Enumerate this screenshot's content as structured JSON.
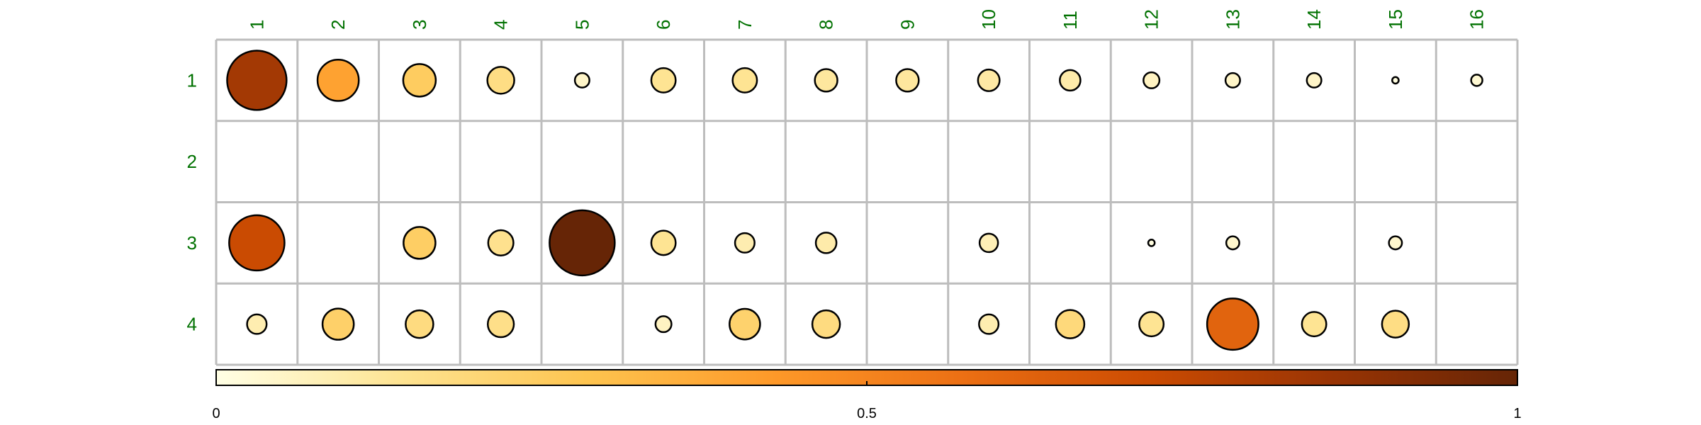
{
  "chart_data": {
    "type": "heatmap",
    "variant": "bubble-matrix",
    "columns": [
      "1",
      "2",
      "3",
      "4",
      "5",
      "6",
      "7",
      "8",
      "9",
      "10",
      "11",
      "12",
      "13",
      "14",
      "15",
      "16"
    ],
    "rows": [
      "1",
      "2",
      "3",
      "4"
    ],
    "values": [
      [
        0.83,
        0.4,
        0.25,
        0.17,
        0.05,
        0.14,
        0.14,
        0.12,
        0.12,
        0.11,
        0.1,
        0.06,
        0.05,
        0.05,
        0.01,
        0.03
      ],
      [
        null,
        null,
        null,
        null,
        null,
        null,
        null,
        null,
        null,
        null,
        null,
        null,
        null,
        null,
        null,
        null
      ],
      [
        0.72,
        null,
        0.24,
        0.15,
        1.0,
        0.14,
        0.09,
        0.1,
        null,
        0.08,
        null,
        0.01,
        0.04,
        null,
        0.04,
        null
      ],
      [
        0.09,
        0.23,
        0.18,
        0.16,
        null,
        0.06,
        0.22,
        0.18,
        null,
        0.09,
        0.19,
        0.14,
        0.62,
        0.14,
        0.17,
        null
      ]
    ],
    "size_encodes": "value",
    "color_encodes": "value",
    "grid": true,
    "legend": "bottom",
    "colorbar": {
      "range": [
        0,
        1
      ],
      "ticks": [
        "0",
        "0.5",
        "1"
      ],
      "colors": [
        "#FFFFE5",
        "#FEE391",
        "#FEC44F",
        "#FE9929",
        "#EC7014",
        "#CC4C02",
        "#993404",
        "#662506"
      ]
    }
  }
}
